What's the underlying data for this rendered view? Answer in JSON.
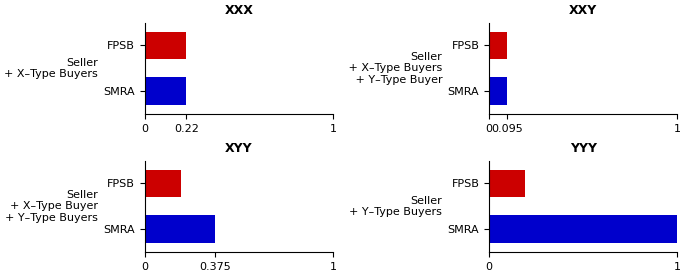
{
  "chart_data": [
    {
      "type": "bar",
      "orientation": "horizontal",
      "stacked": true,
      "title": "XXX",
      "ylabel": "Seller\n+ X–Type Buyers",
      "categories": [
        "FPSB",
        "SMRA"
      ],
      "series": [
        {
          "color": "#cc0000",
          "values": [
            0.22,
            null
          ]
        },
        {
          "color": "#0000cc",
          "values": [
            null,
            0.19
          ]
        },
        {
          "color": "#0000cc",
          "values": [
            null,
            0.03
          ]
        }
      ],
      "xlim": [
        0,
        1.0
      ],
      "xticks": [
        0,
        0.22,
        1
      ]
    },
    {
      "type": "bar",
      "orientation": "horizontal",
      "stacked": true,
      "title": "XXY",
      "ylabel": "Seller\n + X–Type Buyers\n + Y–Type Buyer",
      "categories": [
        "FPSB",
        "SMRA"
      ],
      "series": [
        {
          "color": "#cc0000",
          "values": [
            0.095,
            null
          ]
        },
        {
          "color": "#0000cc",
          "values": [
            null,
            0.055
          ]
        },
        {
          "color": "#0000cc",
          "values": [
            null,
            0.04
          ]
        }
      ],
      "xlim": [
        0,
        1.0
      ],
      "xticks": [
        0,
        0.095,
        1
      ]
    },
    {
      "type": "bar",
      "orientation": "horizontal",
      "stacked": true,
      "title": "XYY",
      "ylabel": "Seller\n+ X–Type Buyer\n+ Y–Type Buyers",
      "categories": [
        "FPSB",
        "SMRA"
      ],
      "series": [
        {
          "color": "#cc0000",
          "values": [
            0.19,
            null
          ]
        },
        {
          "color": "#0000cc",
          "values": [
            null,
            0.19
          ]
        },
        {
          "color": "#0000cc",
          "values": [
            null,
            0.185
          ]
        }
      ],
      "xlim": [
        0,
        1.0
      ],
      "xticks": [
        0,
        0.375,
        1
      ]
    },
    {
      "type": "bar",
      "orientation": "horizontal",
      "stacked": true,
      "title": "YYY",
      "ylabel": "Seller\n+ Y–Type Buyers",
      "categories": [
        "FPSB",
        "SMRA"
      ],
      "series": [
        {
          "color": "#cc0000",
          "values": [
            0.19,
            null
          ]
        },
        {
          "color": "#0000cc",
          "values": [
            null,
            0.62
          ]
        },
        {
          "color": "#0000cc",
          "values": [
            null,
            0.38
          ]
        }
      ],
      "xlim": [
        0,
        1.0
      ],
      "xticks": [
        0,
        1
      ]
    }
  ]
}
